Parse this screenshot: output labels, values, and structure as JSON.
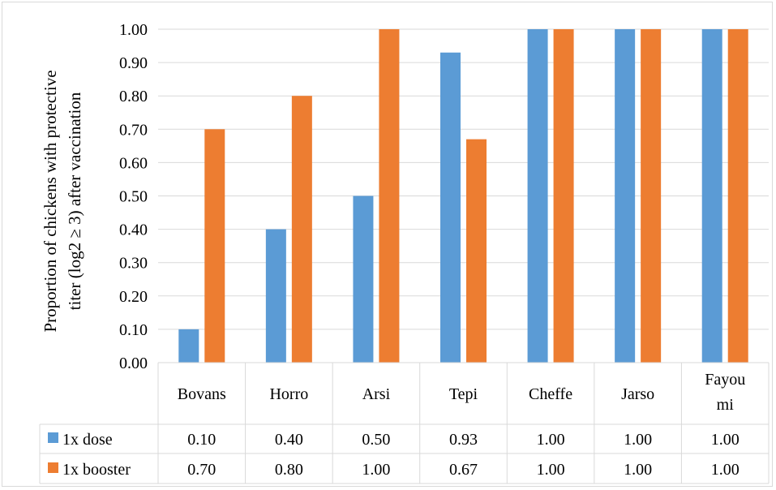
{
  "chart_data": {
    "type": "bar",
    "categories": [
      "Bovans",
      "Horro",
      "Arsi",
      "Tepi",
      "Cheffe",
      "Jarso",
      "Fayoumi"
    ],
    "category_lines": [
      [
        "Bovans"
      ],
      [
        "Horro"
      ],
      [
        "Arsi"
      ],
      [
        "Tepi"
      ],
      [
        "Cheffe"
      ],
      [
        "Jarso"
      ],
      [
        "Fayou",
        "mi"
      ]
    ],
    "series": [
      {
        "name": "1x dose",
        "color": "#5b9bd5",
        "values": [
          0.1,
          0.4,
          0.5,
          0.93,
          1.0,
          1.0,
          1.0
        ],
        "table_values": [
          "0.10",
          "0.40",
          "0.50",
          "0.93",
          "1.00",
          "1.00",
          "1.00"
        ]
      },
      {
        "name": "1x booster",
        "color": "#ed7d31",
        "values": [
          0.7,
          0.8,
          1.0,
          0.67,
          1.0,
          1.0,
          1.0
        ],
        "table_values": [
          "0.70",
          "0.80",
          "1.00",
          "0.67",
          "1.00",
          "1.00",
          "1.00"
        ]
      }
    ],
    "ylabel_lines": [
      "Proportion of chickens with protective",
      "titer (log2 ≥ 3) after vaccination"
    ],
    "ylim": [
      0,
      1.0
    ],
    "yticks": [
      "0.00",
      "0.10",
      "0.20",
      "0.30",
      "0.40",
      "0.50",
      "0.60",
      "0.70",
      "0.80",
      "0.90",
      "1.00"
    ],
    "grid": true,
    "data_table": true,
    "gridline_color": "#d9d9d9"
  }
}
